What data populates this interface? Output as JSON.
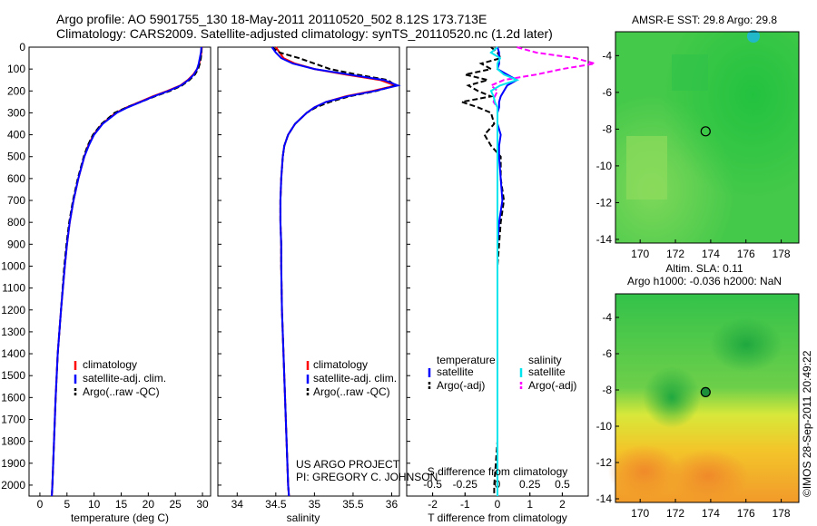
{
  "header": {
    "line1": "Argo profile: AO 5901755_130 18-May-2011 20110520_502 8.12S 173.713E",
    "line2": "Climatology: CARS2009. Satellite-adjusted climatology: synTS_20110520.nc (1.2d later)"
  },
  "depth_ticks": [
    "0",
    "100",
    "200",
    "300",
    "400",
    "500",
    "600",
    "700",
    "800",
    "900",
    "1000",
    "1100",
    "1200",
    "1300",
    "1400",
    "1500",
    "1600",
    "1700",
    "1800",
    "1900",
    "2000"
  ],
  "panels": {
    "temperature": {
      "xlabel": "temperature (deg C)",
      "xticks": [
        "0",
        "5",
        "10",
        "15",
        "20",
        "25",
        "30"
      ],
      "legend": [
        "climatology",
        "satellite-adj. clim.",
        "Argo(..raw -QC)"
      ]
    },
    "salinity": {
      "xlabel": "salinity",
      "xticks": [
        "34",
        "34.5",
        "35",
        "35.5",
        "36"
      ],
      "legend": [
        "climatology",
        "satellite-adj. clim.",
        "Argo(..raw -QC)"
      ],
      "project_line1": "US ARGO PROJECT",
      "project_line2": "PI: GREGORY C. JOHNSON"
    },
    "difference": {
      "top_label": "S difference from climatology",
      "top_ticks": [
        "-0.5",
        "-0.25",
        "0",
        "0.25",
        "0.5"
      ],
      "xlabel": "T difference from climatology",
      "xticks": [
        "-2",
        "-1",
        "0",
        "1",
        "2"
      ],
      "legend_temp_title": "temperature",
      "legend_sal_title": "salinity",
      "legend_temp": [
        "satellite",
        "Argo(-adj)"
      ],
      "legend_sal": [
        "satellite",
        "Argo(-adj)"
      ]
    }
  },
  "maps": {
    "sst_title": "AMSR-E SST: 29.8 Argo: 29.8",
    "sla_title1": "Altim. SLA: 0.11",
    "sla_title2": "Argo h1000: -0.036 h2000: NaN",
    "lat_ticks": [
      "-4",
      "-6",
      "-8",
      "-10",
      "-12",
      "-14"
    ],
    "lon_ticks": [
      "170",
      "172",
      "174",
      "176",
      "178"
    ],
    "float_position": {
      "lon": 173.713,
      "lat": -8.12
    }
  },
  "credit": "©IMOS 28-Sep-2011 20:49:22",
  "colors": {
    "climatology": "#ff0000",
    "satellite": "#0000ff",
    "argo": "#000000",
    "sal_satellite": "#00e5ee",
    "sal_argo": "#ff00ff"
  },
  "chart_data": {
    "type": "line",
    "ylabel": "",
    "ylim": [
      2050,
      0
    ],
    "temperature": {
      "xlim": [
        -2,
        31.5
      ],
      "depth": [
        0,
        25,
        50,
        75,
        100,
        125,
        150,
        175,
        200,
        225,
        250,
        275,
        300,
        350,
        400,
        450,
        500,
        600,
        700,
        800,
        900,
        1000,
        1200,
        1400,
        1600,
        1800,
        2000,
        2050
      ],
      "climatology": [
        29.9,
        29.8,
        29.6,
        29.4,
        29.0,
        28.3,
        27.3,
        25.9,
        23.5,
        20.8,
        18.4,
        16.0,
        14.0,
        11.5,
        9.9,
        8.9,
        8.2,
        7.1,
        6.2,
        5.5,
        5.0,
        4.6,
        3.9,
        3.3,
        2.9,
        2.6,
        2.3,
        2.2
      ],
      "satellite": [
        29.8,
        29.7,
        29.5,
        29.3,
        29.0,
        28.4,
        27.4,
        26.0,
        23.7,
        21.0,
        18.6,
        16.2,
        14.2,
        11.6,
        10.0,
        9.0,
        8.2,
        7.1,
        6.2,
        5.5,
        5.0,
        4.6,
        3.9,
        3.3,
        2.9,
        2.6,
        2.3,
        2.2
      ],
      "argo": [
        29.8,
        29.8,
        29.7,
        29.5,
        29.2,
        28.6,
        27.6,
        26.2,
        24.0,
        21.2,
        18.6,
        16.0,
        13.8,
        11.4,
        9.8,
        8.8,
        8.1,
        7.0,
        6.1,
        5.4,
        4.9,
        4.5,
        3.9,
        3.3,
        2.9,
        2.6,
        2.3,
        2.2
      ]
    },
    "salinity": {
      "xlim": [
        33.75,
        36.1
      ],
      "depth": [
        0,
        25,
        50,
        75,
        100,
        125,
        150,
        175,
        200,
        225,
        250,
        275,
        300,
        350,
        400,
        450,
        500,
        600,
        700,
        800,
        900,
        1000,
        1200,
        1400,
        1600,
        1800,
        2000,
        2050
      ],
      "climatology": [
        34.5,
        34.55,
        34.6,
        34.75,
        35.0,
        35.4,
        35.85,
        36.05,
        35.75,
        35.4,
        35.15,
        35.0,
        34.9,
        34.75,
        34.66,
        34.61,
        34.59,
        34.57,
        34.56,
        34.56,
        34.57,
        34.57,
        34.58,
        34.6,
        34.62,
        34.64,
        34.66,
        34.67
      ],
      "satellite": [
        34.45,
        34.5,
        34.57,
        34.72,
        35.0,
        35.45,
        35.9,
        36.08,
        35.78,
        35.42,
        35.15,
        35.0,
        34.9,
        34.75,
        34.66,
        34.61,
        34.59,
        34.57,
        34.56,
        34.56,
        34.57,
        34.57,
        34.58,
        34.6,
        34.62,
        34.64,
        34.66,
        34.67
      ],
      "argo": [
        34.45,
        34.55,
        34.8,
        35.0,
        35.2,
        35.55,
        35.95,
        36.05,
        35.8,
        35.45,
        35.2,
        35.02,
        34.9,
        34.75,
        34.66,
        34.61,
        34.59,
        34.57,
        34.56,
        34.56,
        34.57,
        34.57,
        34.58,
        34.6,
        34.62,
        34.64,
        34.66,
        34.67
      ]
    },
    "difference": {
      "t_xlim": [
        -2.8,
        2.8
      ],
      "s_xlim": [
        -0.7,
        0.7
      ],
      "depth": [
        0,
        25,
        50,
        75,
        100,
        125,
        150,
        175,
        200,
        225,
        250,
        275,
        300,
        350,
        400,
        450,
        500,
        600,
        700,
        800,
        900,
        1000,
        1200,
        1400,
        1600,
        1800,
        2000,
        2050
      ],
      "t_satellite": [
        0.0,
        0.05,
        0.05,
        0.05,
        0.0,
        0.3,
        0.6,
        0.3,
        0.2,
        0.1,
        0.05,
        0.05,
        0.0,
        0.0,
        0.1,
        0.05,
        0.05,
        0.1,
        0.15,
        0.05,
        0.0,
        0.0,
        0.0,
        0.0,
        0.0,
        0.0,
        0.0,
        0.0
      ],
      "t_argo": [
        -0.2,
        0.0,
        0.1,
        -0.5,
        -0.2,
        -1.0,
        -0.3,
        -0.9,
        -0.6,
        -0.2,
        -1.1,
        -0.6,
        -0.2,
        -0.1,
        -0.4,
        -0.2,
        0.1,
        0.1,
        0.2,
        0.1,
        0.05,
        0.0,
        0.0,
        0.0,
        0.0,
        0.0,
        -0.1,
        -0.1
      ],
      "s_satellite": [
        0.0,
        -0.05,
        0.02,
        0.0,
        0.0,
        0.05,
        0.15,
        0.02,
        -0.05,
        -0.03,
        -0.02,
        0.0,
        0.0,
        0.0,
        0.0,
        0.0,
        0.0,
        0.0,
        0.0,
        0.0,
        0.0,
        0.0,
        0.0,
        0.0,
        0.0,
        0.0,
        0.0,
        0.0
      ],
      "s_argo": [
        0.15,
        0.3,
        0.6,
        0.75,
        0.5,
        0.3,
        0.05,
        -0.05,
        0.0,
        -0.02,
        -0.03,
        0.0,
        0.0,
        0.0,
        0.0,
        0.0,
        0.0,
        0.0,
        0.0,
        0.0,
        0.0,
        0.0,
        0.0,
        0.0,
        0.0,
        0.0,
        0.0,
        0.0
      ]
    },
    "sst_map": {
      "lon_range": [
        168.6,
        179.0
      ],
      "lat_range": [
        -14.2,
        -2.7
      ]
    },
    "sla_map": {
      "lon_range": [
        168.6,
        179.0
      ],
      "lat_range": [
        -14.2,
        -2.7
      ]
    }
  }
}
